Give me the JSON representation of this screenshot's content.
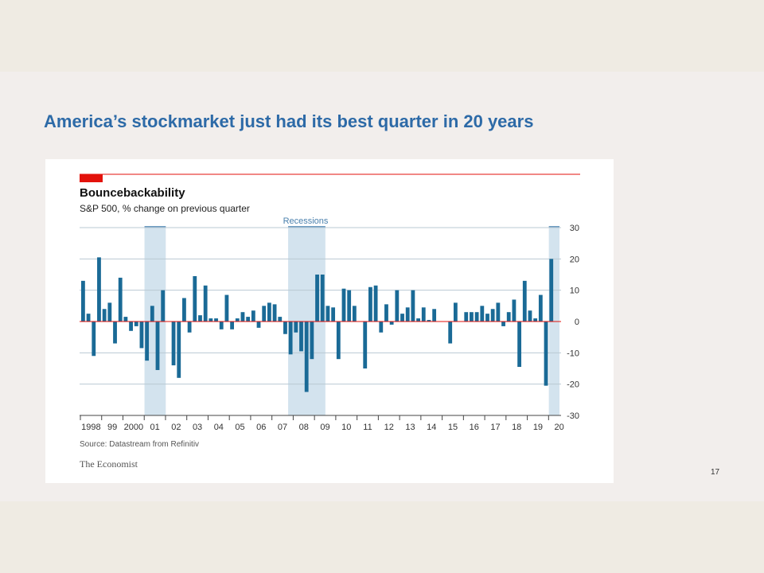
{
  "slide": {
    "title": "America’s stockmarket just had its best quarter in 20 years",
    "page_number": "17"
  },
  "colors": {
    "bar": "#1a6a96",
    "zero_line": "#e3120b",
    "accent": "#e3120b",
    "recession_shade": "#d3e3ee",
    "recession_cap": "#6c9bc0",
    "gridline": "#b9c8d3",
    "title_blue": "#2d6aa7"
  },
  "chart_data": {
    "type": "bar",
    "title": "Bouncebackability",
    "subtitle": "S&P 500, % change on previous quarter",
    "recession_label": "Recessions",
    "source": "Source: Datastream from Refinitiv",
    "credit": "The Economist",
    "ylim": [
      -30,
      30
    ],
    "yticks": [
      30,
      20,
      10,
      0,
      -10,
      -20,
      -30
    ],
    "ytick_labels": [
      "30",
      "20",
      "10",
      "0",
      "-10",
      "-20",
      "-30"
    ],
    "x_labels": [
      "1998",
      "99",
      "2000",
      "01",
      "02",
      "03",
      "04",
      "05",
      "06",
      "07",
      "08",
      "09",
      "10",
      "11",
      "12",
      "13",
      "14",
      "15",
      "16",
      "17",
      "18",
      "19",
      "20"
    ],
    "year_start": 1998,
    "grid": true,
    "recessions": [
      {
        "start": "2001Q1",
        "end": "2001Q4"
      },
      {
        "start": "2007Q4",
        "end": "2009Q2"
      },
      {
        "start": "2020Q1",
        "end": "2020Q2"
      }
    ],
    "series": [
      {
        "values": [
          13,
          2.5,
          -11,
          20.5,
          4,
          6,
          -7,
          14,
          1.5,
          -3,
          -1.5,
          -8.5,
          -12.5,
          5,
          -15.5,
          10,
          0,
          -14,
          -18,
          7.5,
          -3.5,
          14.5,
          2,
          11.5,
          1,
          1,
          -2.5,
          8.5,
          -2.5,
          1,
          3,
          1.5,
          3.5,
          -2,
          5,
          6,
          5.5,
          1.5,
          -4,
          -10.5,
          -3.5,
          -9.5,
          -22.5,
          -12,
          15,
          15,
          5,
          4.5,
          -12,
          10.5,
          10,
          5,
          0,
          -15,
          11,
          11.5,
          -3.5,
          5.5,
          -1,
          10,
          2.5,
          4.5,
          10,
          1,
          4.5,
          0.5,
          4,
          0,
          0,
          -7,
          6,
          0,
          3,
          3,
          3,
          5,
          2.5,
          4,
          6,
          -1.5,
          3,
          7,
          -14.5,
          13,
          3.5,
          1,
          8.5,
          -20.5,
          20
        ]
      }
    ]
  }
}
